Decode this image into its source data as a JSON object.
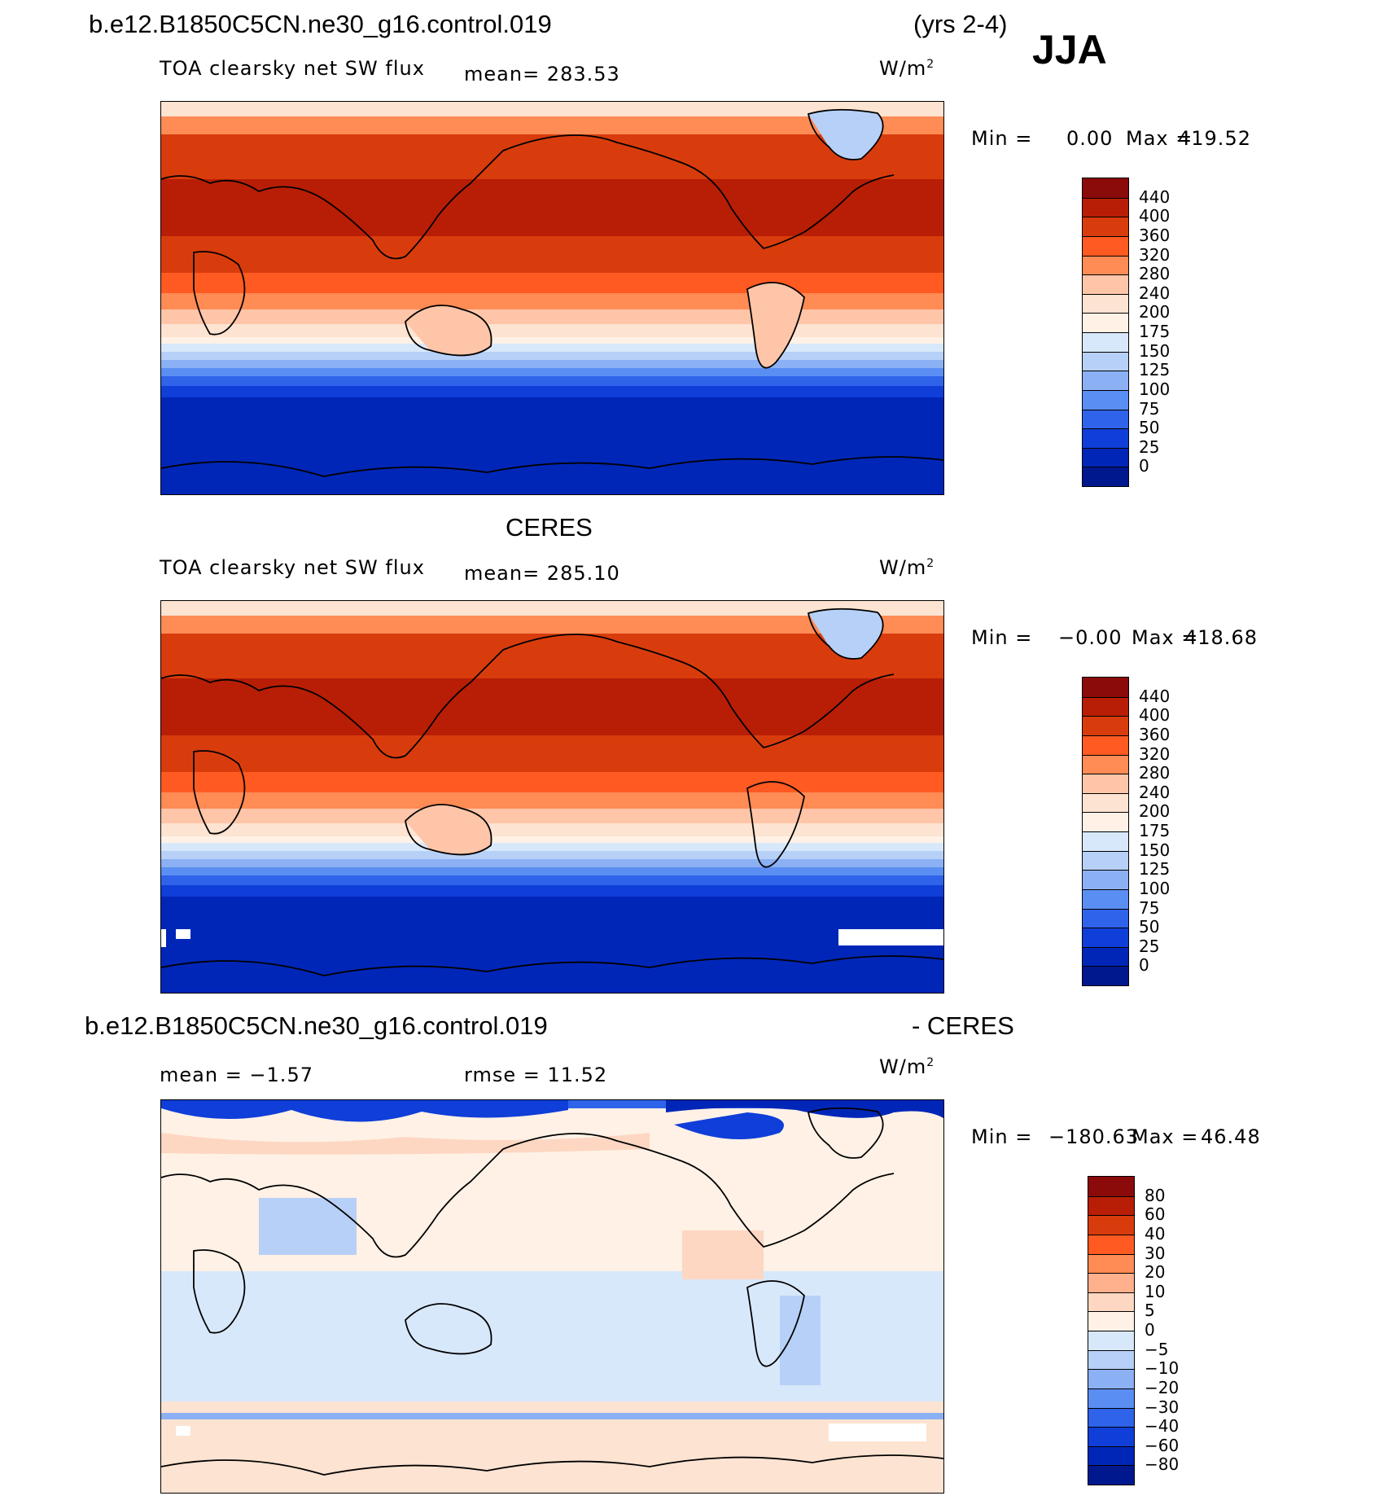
{
  "header": {
    "case_name": "b.e12.B1850C5CN.ne30_g16.control.019",
    "years": "(yrs 2-4)",
    "season": "JJA"
  },
  "panels": [
    {
      "id": "model",
      "title": "",
      "variable": "TOA clearsky net SW flux",
      "stat1": "mean= 283.53",
      "stat2": "",
      "units": "W/m",
      "units_sup": "2",
      "min_label": "Min =",
      "min_value": "0.00",
      "max_label": "Max =",
      "max_value": "419.52",
      "colorbar": {
        "colors": [
          "#8b0a0a",
          "#b81e05",
          "#d93c0c",
          "#ff5a21",
          "#ff8b55",
          "#ffc5a8",
          "#fde3d1",
          "#fff1e6",
          "#d8e8fb",
          "#b7d0f7",
          "#8cb0f4",
          "#5b8ef2",
          "#2f63ea",
          "#0f3ed8",
          "#0026b8",
          "#00188e"
        ],
        "labels": [
          "440",
          "400",
          "360",
          "320",
          "280",
          "240",
          "200",
          "175",
          "150",
          "125",
          "100",
          "75",
          "50",
          "25",
          "0"
        ]
      }
    },
    {
      "id": "obs",
      "title": "CERES",
      "variable": "TOA clearsky net SW flux",
      "stat1": "mean= 285.10",
      "stat2": "",
      "units": "W/m",
      "units_sup": "2",
      "min_label": "Min =",
      "min_value": "−0.00",
      "max_label": "Max =",
      "max_value": "418.68",
      "colorbar": {
        "colors": [
          "#8b0a0a",
          "#b81e05",
          "#d93c0c",
          "#ff5a21",
          "#ff8b55",
          "#ffc5a8",
          "#fde3d1",
          "#fff1e6",
          "#d8e8fb",
          "#b7d0f7",
          "#8cb0f4",
          "#5b8ef2",
          "#2f63ea",
          "#0f3ed8",
          "#0026b8",
          "#00188e"
        ],
        "labels": [
          "440",
          "400",
          "360",
          "320",
          "280",
          "240",
          "200",
          "175",
          "150",
          "125",
          "100",
          "75",
          "50",
          "25",
          "0"
        ]
      }
    },
    {
      "id": "diff",
      "title_left": "b.e12.B1850C5CN.ne30_g16.control.019",
      "title_right": "- CERES",
      "stat1": "mean =   −1.57",
      "stat2": "rmse =   11.52",
      "units": "W/m",
      "units_sup": "2",
      "min_label": "Min =",
      "min_value": "−180.63",
      "max_label": "Max =",
      "max_value": "46.48",
      "colorbar": {
        "colors": [
          "#8b0a0a",
          "#b81e05",
          "#d93c0c",
          "#ff5a21",
          "#ff8b55",
          "#ffb08c",
          "#fdd7c2",
          "#fff1e6",
          "#d8e8fb",
          "#b7d0f7",
          "#8cb0f4",
          "#5b8ef2",
          "#2f63ea",
          "#0f3ed8",
          "#0026b8",
          "#00188e"
        ],
        "labels": [
          "80",
          "60",
          "40",
          "30",
          "20",
          "10",
          "5",
          "0",
          "−5",
          "−10",
          "−20",
          "−30",
          "−40",
          "−60",
          "−80"
        ]
      }
    }
  ]
}
